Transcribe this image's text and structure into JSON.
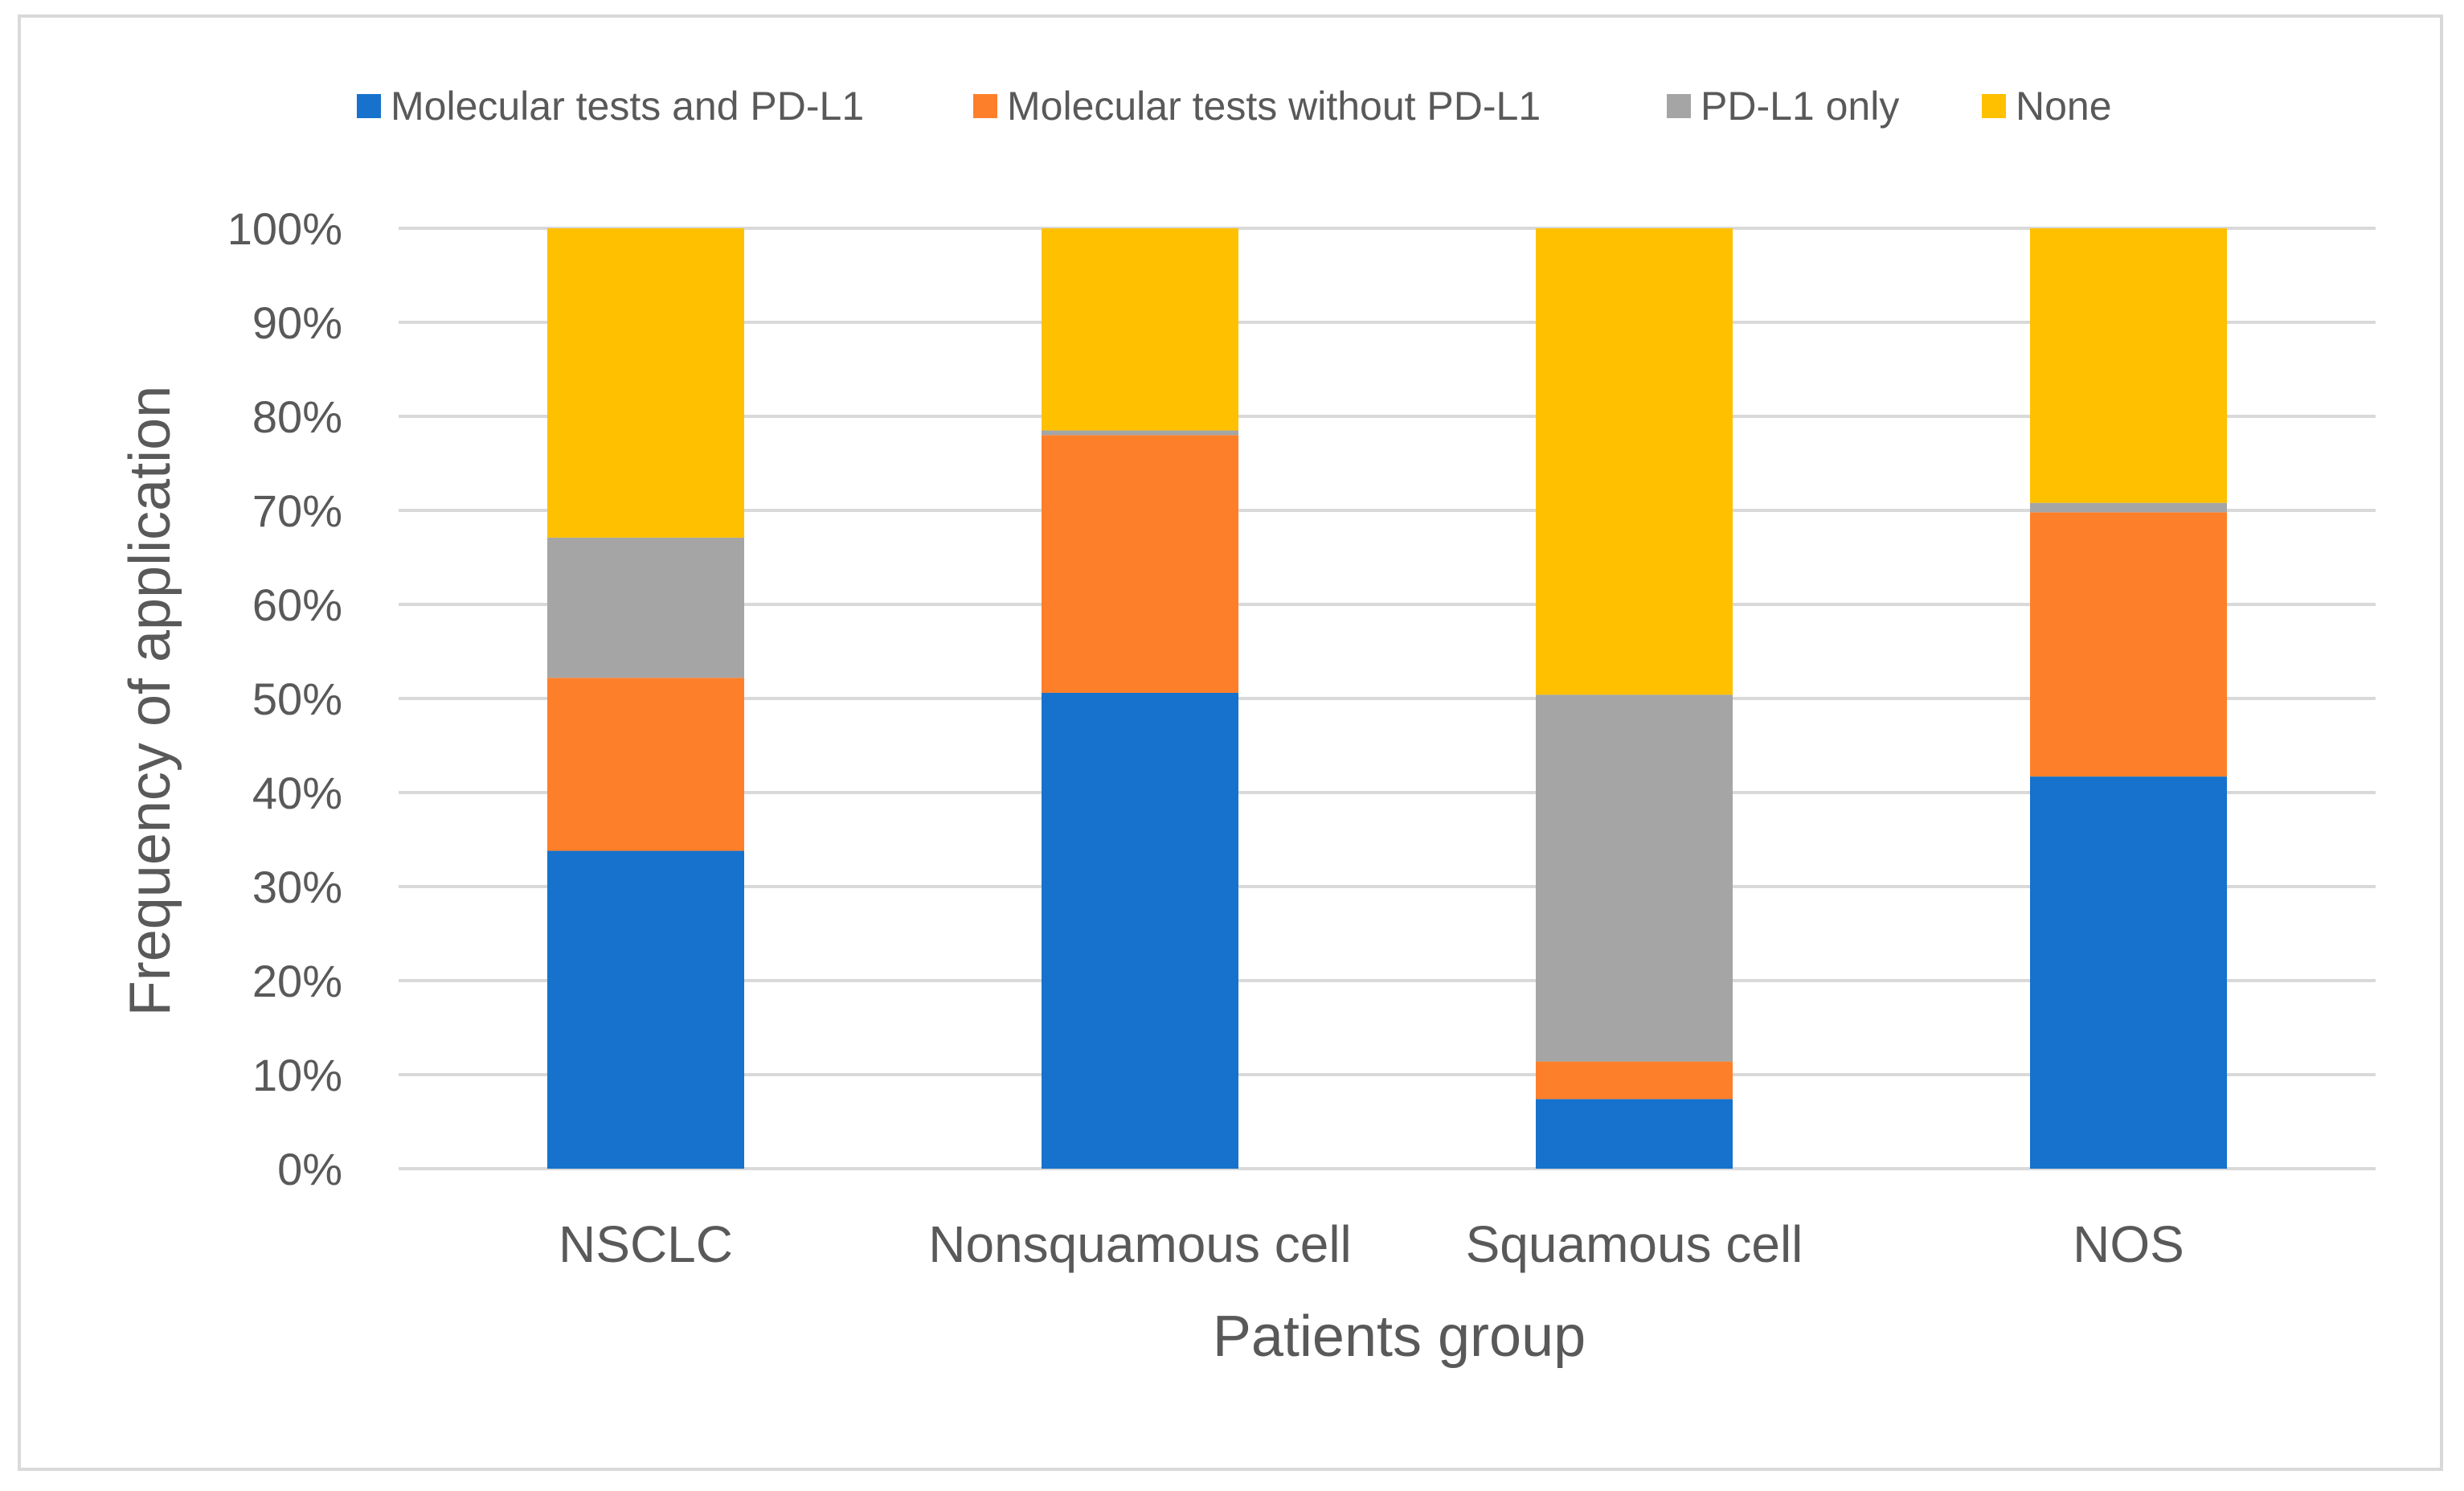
{
  "chart_data": {
    "type": "bar",
    "stacked": true,
    "title": "",
    "xlabel": "Patients group",
    "ylabel": "Frequency of application",
    "categories": [
      "NSCLC",
      "Nonsquamous cell",
      "Squamous cell",
      "NOS"
    ],
    "yticks": [
      "0%",
      "10%",
      "20%",
      "30%",
      "40%",
      "50%",
      "60%",
      "70%",
      "80%",
      "90%",
      "100%"
    ],
    "ylim": [
      0,
      100
    ],
    "grid": true,
    "legend_position": "top",
    "series": [
      {
        "name": "Molecular tests and PD-L1",
        "color": "#1672cc",
        "values": [
          33.8,
          50.6,
          7.4,
          41.7
        ]
      },
      {
        "name": "Molecular tests without PD-L1",
        "color": "#fe7f2a",
        "values": [
          18.4,
          27.4,
          4.0,
          28.1
        ]
      },
      {
        "name": "PD-L1 only",
        "color": "#a5a5a5",
        "values": [
          14.9,
          0.5,
          39.0,
          1.0
        ]
      },
      {
        "name": "None",
        "color": "#ffc000",
        "values": [
          32.9,
          21.5,
          49.6,
          29.2
        ]
      }
    ]
  }
}
